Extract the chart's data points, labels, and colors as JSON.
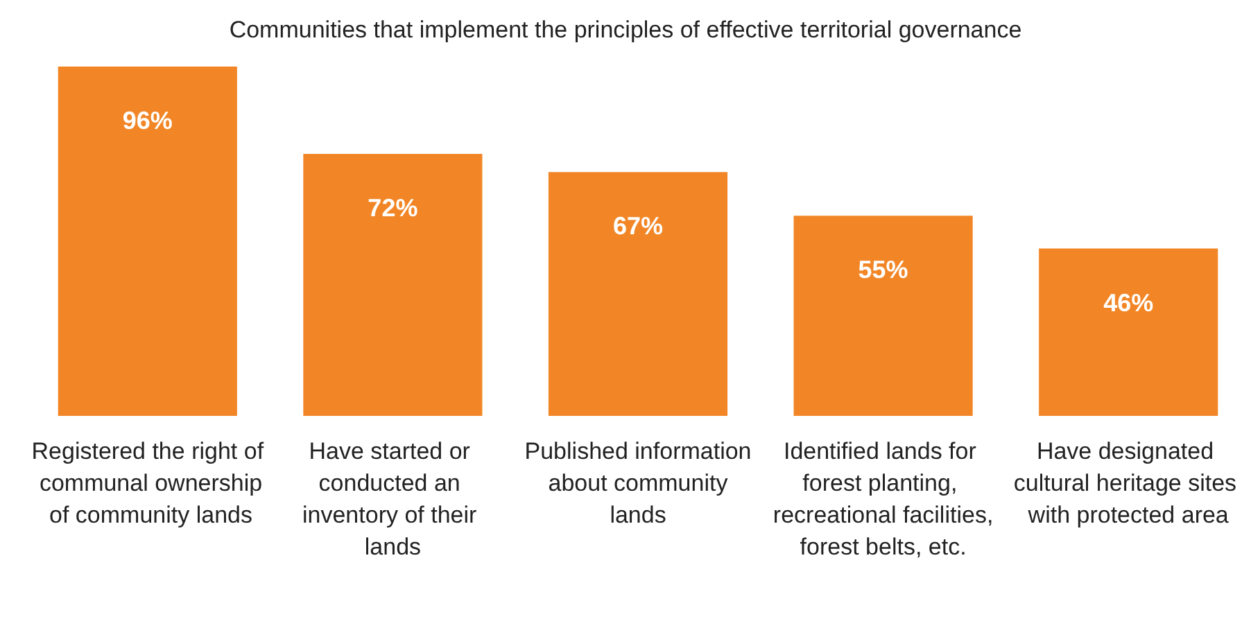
{
  "chart_data": {
    "type": "bar",
    "title": "Communities that implement the principles of effective territorial governance",
    "categories": [
      "Registered the right of communal ownership of community lands",
      "Have started or conducted an inventory of their lands",
      "Published information about community lands",
      "Identified lands for forest planting, recreational facilities,forest belts, etc.",
      "Have designated cultural heritage sites with protected area"
    ],
    "values": [
      96,
      72,
      67,
      55,
      46
    ],
    "value_labels": [
      "96%",
      "72%",
      "67%",
      "55%",
      "46%"
    ],
    "color": "#f28626"
  }
}
